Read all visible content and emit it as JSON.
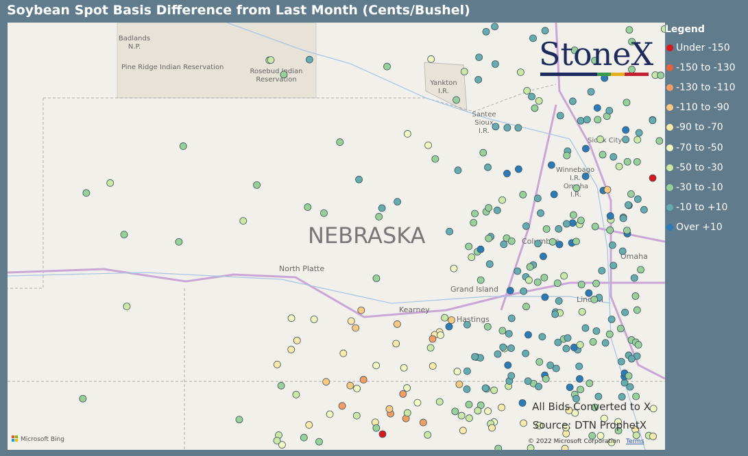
{
  "header": {
    "title": "Soybean Spot Basis Difference from Last Month (Cents/Bushel)"
  },
  "legend": {
    "title": "Legend",
    "items": [
      {
        "label": "Under -150",
        "color": "#d7191c"
      },
      {
        "label": "-150 to -130",
        "color": "#e8603c"
      },
      {
        "label": "-130 to -110",
        "color": "#f59e64"
      },
      {
        "label": "-110 to -90",
        "color": "#fdc980"
      },
      {
        "label": "-90 to -70",
        "color": "#fde9a9"
      },
      {
        "label": "-70 to -50",
        "color": "#f2f8c0"
      },
      {
        "label": "-50 to -30",
        "color": "#cde8a6"
      },
      {
        "label": "-30 to -10",
        "color": "#99d09a"
      },
      {
        "label": "-10 to +10",
        "color": "#66abae"
      },
      {
        "label": "Over +10",
        "color": "#2c7bb6"
      }
    ]
  },
  "map": {
    "labels": {
      "badlands": [
        "Badlands",
        "N.P."
      ],
      "pine_ridge": "Pine Ridge Indian Reservation",
      "rosebud": [
        "Rosebud Indian",
        "Reservation"
      ],
      "yankton": [
        "Yankton",
        "I.R."
      ],
      "santee": [
        "Santee",
        "Sioux",
        "I.R."
      ],
      "sioux_city": "Sioux City",
      "winnebago": [
        "Winnebago",
        "I.R."
      ],
      "omaha_ir": [
        "Omaha",
        "I.R."
      ],
      "state": "NEBRASKA",
      "north_platte": "North Platte",
      "columbus": "Columbus",
      "omaha": "Omaha",
      "grand_island": "Grand Island",
      "kearney": "Kearney",
      "hastings": "Hastings",
      "lincoln": "Lincoln"
    },
    "logo": "StoneX",
    "notes": [
      "All Bids Converted to X",
      "Source: DTN ProphetX"
    ],
    "attribution": {
      "bing": "Microsoft Bing",
      "copyright": "© 2022 Microsoft Corporation",
      "terms": "Terms"
    }
  }
}
